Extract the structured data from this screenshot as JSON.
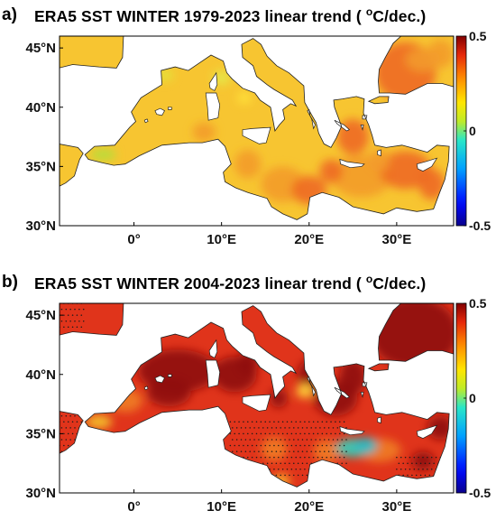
{
  "panels": [
    {
      "id": "a",
      "letter": "a)",
      "title_pre": "ERA5 SST WINTER 1979-2023 linear trend ( ",
      "title_sup": "o",
      "title_post": "C/dec.)",
      "trend_level": 0.25,
      "colors": {
        "sea_main": "#f7c531",
        "sea_hot": "#ee6a22",
        "sea_warm": "#f39b2a"
      },
      "stipple": false
    },
    {
      "id": "b",
      "letter": "b)",
      "title_pre": "ERA5 SST WINTER 2004-2023 linear trend ( ",
      "title_sup": "o",
      "title_post": "C/dec.)",
      "trend_level": 0.45,
      "colors": {
        "sea_main": "#e0341b",
        "sea_hot": "#8e0c0c",
        "sea_warm": "#f07d26"
      },
      "stipple": true
    }
  ],
  "lat_labels": [
    "45°N",
    "40°N",
    "35°N",
    "30°N"
  ],
  "lat_values": [
    45,
    40,
    35,
    30
  ],
  "lon_labels": [
    "0°",
    "10°E",
    "20°E",
    "30°E"
  ],
  "lon_values": [
    0,
    10,
    20,
    30
  ],
  "colorbar": {
    "min": -0.5,
    "max": 0.5,
    "labels": [
      "0.5",
      "0",
      "-0.5"
    ],
    "values": [
      0.5,
      0,
      -0.5
    ]
  },
  "extent": {
    "lon_min": -8.5,
    "lon_max": 36.5,
    "lat_min": 30,
    "lat_max": 46
  }
}
